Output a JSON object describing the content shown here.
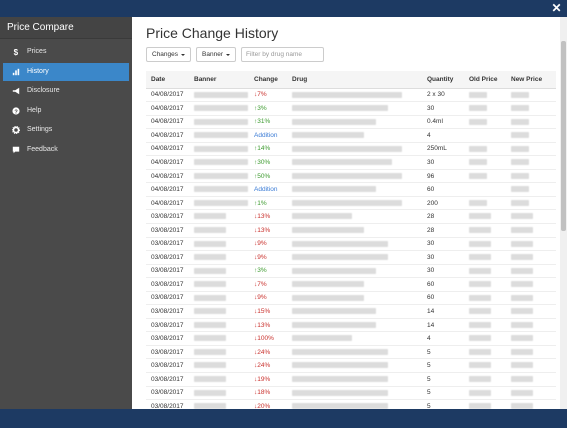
{
  "sidebar": {
    "brand": "Price Compare",
    "items": [
      {
        "label": "Prices",
        "icon": "dollar-icon"
      },
      {
        "label": "History",
        "icon": "bar-chart-icon",
        "active": true
      },
      {
        "label": "Disclosure",
        "icon": "megaphone-icon"
      },
      {
        "label": "Help",
        "icon": "question-circle-icon"
      },
      {
        "label": "Settings",
        "icon": "gear-icon"
      },
      {
        "label": "Feedback",
        "icon": "chat-icon"
      }
    ]
  },
  "main": {
    "title": "Price Change History",
    "filters": {
      "changes_label": "Changes",
      "banner_label": "Banner",
      "search_placeholder": "Filter by drug name"
    },
    "table": {
      "headers": [
        "Date",
        "Banner",
        "Change",
        "Drug",
        "Quantity",
        "Old Price",
        "New Price"
      ],
      "rows": [
        {
          "date": "04/08/2017",
          "change": "7%",
          "dir": "down",
          "qty": "2 x 30",
          "b": 54,
          "d": 110,
          "o": 18,
          "n": 18
        },
        {
          "date": "04/08/2017",
          "change": "3%",
          "dir": "up",
          "qty": "30",
          "b": 54,
          "d": 96,
          "o": 18,
          "n": 18
        },
        {
          "date": "04/08/2017",
          "change": "31%",
          "dir": "up",
          "qty": "0.4ml",
          "b": 54,
          "d": 84,
          "o": 18,
          "n": 18
        },
        {
          "date": "04/08/2017",
          "change": "Addition",
          "dir": "add",
          "qty": "4",
          "b": 54,
          "d": 72,
          "o": 0,
          "n": 18
        },
        {
          "date": "04/08/2017",
          "change": "14%",
          "dir": "up",
          "qty": "250mL",
          "b": 54,
          "d": 110,
          "o": 18,
          "n": 18
        },
        {
          "date": "04/08/2017",
          "change": "30%",
          "dir": "up",
          "qty": "30",
          "b": 54,
          "d": 100,
          "o": 18,
          "n": 18
        },
        {
          "date": "04/08/2017",
          "change": "50%",
          "dir": "up",
          "qty": "96",
          "b": 54,
          "d": 110,
          "o": 18,
          "n": 18
        },
        {
          "date": "04/08/2017",
          "change": "Addition",
          "dir": "add",
          "qty": "60",
          "b": 54,
          "d": 84,
          "o": 0,
          "n": 18
        },
        {
          "date": "04/08/2017",
          "change": "1%",
          "dir": "up",
          "qty": "200",
          "b": 54,
          "d": 110,
          "o": 18,
          "n": 18
        },
        {
          "date": "03/08/2017",
          "change": "13%",
          "dir": "down",
          "qty": "28",
          "b": 32,
          "d": 60,
          "o": 22,
          "n": 22
        },
        {
          "date": "03/08/2017",
          "change": "13%",
          "dir": "down",
          "qty": "28",
          "b": 32,
          "d": 72,
          "o": 22,
          "n": 22
        },
        {
          "date": "03/08/2017",
          "change": "9%",
          "dir": "down",
          "qty": "30",
          "b": 32,
          "d": 96,
          "o": 22,
          "n": 22
        },
        {
          "date": "03/08/2017",
          "change": "9%",
          "dir": "down",
          "qty": "30",
          "b": 32,
          "d": 96,
          "o": 22,
          "n": 22
        },
        {
          "date": "03/08/2017",
          "change": "3%",
          "dir": "up",
          "qty": "30",
          "b": 32,
          "d": 84,
          "o": 22,
          "n": 22
        },
        {
          "date": "03/08/2017",
          "change": "7%",
          "dir": "down",
          "qty": "60",
          "b": 32,
          "d": 72,
          "o": 22,
          "n": 22
        },
        {
          "date": "03/08/2017",
          "change": "9%",
          "dir": "down",
          "qty": "60",
          "b": 32,
          "d": 72,
          "o": 22,
          "n": 22
        },
        {
          "date": "03/08/2017",
          "change": "15%",
          "dir": "down",
          "qty": "14",
          "b": 32,
          "d": 84,
          "o": 22,
          "n": 22
        },
        {
          "date": "03/08/2017",
          "change": "13%",
          "dir": "down",
          "qty": "14",
          "b": 32,
          "d": 84,
          "o": 22,
          "n": 22
        },
        {
          "date": "03/08/2017",
          "change": "100%",
          "dir": "down",
          "qty": "4",
          "b": 32,
          "d": 60,
          "o": 22,
          "n": 22
        },
        {
          "date": "03/08/2017",
          "change": "24%",
          "dir": "down",
          "qty": "5",
          "b": 32,
          "d": 96,
          "o": 22,
          "n": 22
        },
        {
          "date": "03/08/2017",
          "change": "24%",
          "dir": "down",
          "qty": "5",
          "b": 32,
          "d": 96,
          "o": 22,
          "n": 22
        },
        {
          "date": "03/08/2017",
          "change": "19%",
          "dir": "down",
          "qty": "5",
          "b": 32,
          "d": 96,
          "o": 22,
          "n": 22
        },
        {
          "date": "03/08/2017",
          "change": "18%",
          "dir": "down",
          "qty": "5",
          "b": 32,
          "d": 96,
          "o": 22,
          "n": 22
        },
        {
          "date": "03/08/2017",
          "change": "20%",
          "dir": "down",
          "qty": "5",
          "b": 32,
          "d": 96,
          "o": 22,
          "n": 22
        }
      ]
    }
  },
  "colors": {
    "titlebar": "#1d3a63",
    "sidebar": "#4a4a4a",
    "active": "#3b87c9",
    "increase": "#3c9a2e",
    "decrease": "#c9302c",
    "addition": "#3a7bd5"
  }
}
